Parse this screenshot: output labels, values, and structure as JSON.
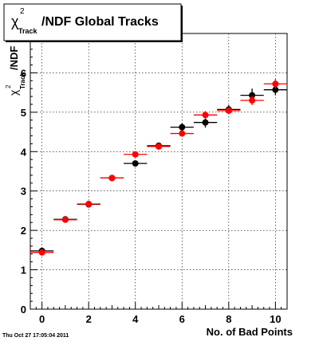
{
  "chart_data": {
    "type": "scatter",
    "title": "/NDF  Global Tracks",
    "title_chi": "χ",
    "title_sup": "2",
    "title_sub": "Track",
    "ylabel": "/NDF",
    "ylabel_chi": "χ",
    "ylabel_sup": "2",
    "ylabel_sub": "Track",
    "xlabel": "No. of Bad Points",
    "xlim": [
      -0.5,
      10.5
    ],
    "ylim": [
      0,
      7
    ],
    "x_ticks": [
      0,
      2,
      4,
      6,
      8,
      10
    ],
    "y_ticks": [
      0,
      1,
      2,
      3,
      4,
      5,
      6,
      7
    ],
    "x_tick_labels": [
      "0",
      "2",
      "4",
      "6",
      "8",
      "10"
    ],
    "y_tick_labels": [
      "0",
      "1",
      "2",
      "3",
      "4",
      "5",
      "6",
      "7"
    ],
    "grid": true,
    "series": [
      {
        "color": "#000000",
        "x": [
          0,
          1,
          2,
          3,
          4,
          5,
          6,
          7,
          8,
          9,
          10
        ],
        "y": [
          1.48,
          2.28,
          2.66,
          3.33,
          3.7,
          4.15,
          4.62,
          4.74,
          5.07,
          5.43,
          5.57
        ],
        "yerr": [
          0.04,
          0.04,
          0.04,
          0.05,
          0.07,
          0.08,
          0.1,
          0.13,
          0.11,
          0.17,
          0.14
        ],
        "xerr": 0.5
      },
      {
        "color": "#ff0000",
        "x": [
          0,
          1,
          2,
          3,
          4,
          5,
          6,
          7,
          8,
          9,
          10
        ],
        "y": [
          1.44,
          2.27,
          2.67,
          3.33,
          3.93,
          4.13,
          4.46,
          4.93,
          5.04,
          5.3,
          5.72
        ],
        "yerr": [
          0.04,
          0.04,
          0.04,
          0.05,
          0.07,
          0.06,
          0.08,
          0.1,
          0.09,
          0.12,
          0.12
        ],
        "xerr": 0.5
      }
    ]
  },
  "footer": {
    "timestamp": "Thu Oct 27 17:05:04 2011"
  }
}
